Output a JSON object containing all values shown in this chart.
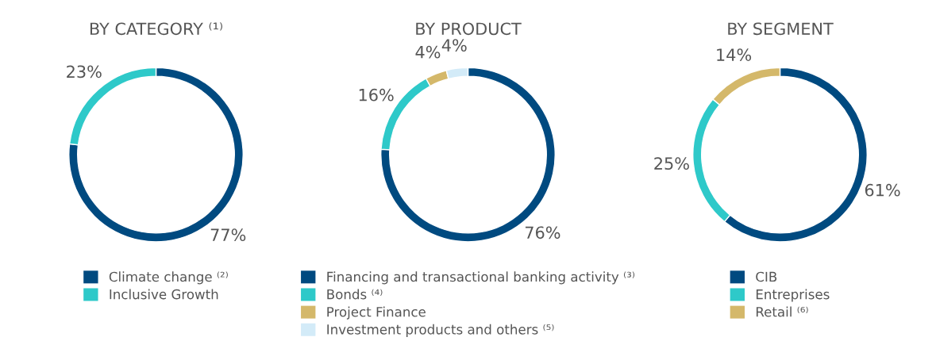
{
  "chart_data": [
    {
      "type": "donut",
      "title": "BY CATEGORY ⁽¹⁾",
      "categories": [
        "Climate change ⁽²⁾",
        "Inclusive Growth"
      ],
      "values": [
        77,
        23
      ],
      "colors": [
        "#004a80",
        "#2ec9c9"
      ],
      "value_labels": [
        "77%",
        "23%"
      ],
      "legend": "bottom"
    },
    {
      "type": "donut",
      "title": "BY PRODUCT",
      "categories": [
        "Financing and transactional banking activity ⁽³⁾",
        "Bonds ⁽⁴⁾",
        "Project Finance",
        "Investment products and others ⁽⁵⁾"
      ],
      "values": [
        76,
        16,
        4,
        4
      ],
      "colors": [
        "#004a80",
        "#2ec9c9",
        "#d4b86a",
        "#d3ebf8"
      ],
      "value_labels": [
        "76%",
        "16%",
        "4%",
        "4%"
      ],
      "legend": "bottom"
    },
    {
      "type": "donut",
      "title": "BY SEGMENT",
      "categories": [
        "CIB",
        "Entreprises",
        "Retail ⁽⁶⁾"
      ],
      "values": [
        61,
        25,
        14
      ],
      "colors": [
        "#004a80",
        "#2ec9c9",
        "#d4b86a"
      ],
      "value_labels": [
        "61%",
        "25%",
        "14%"
      ],
      "legend": "bottom"
    }
  ]
}
